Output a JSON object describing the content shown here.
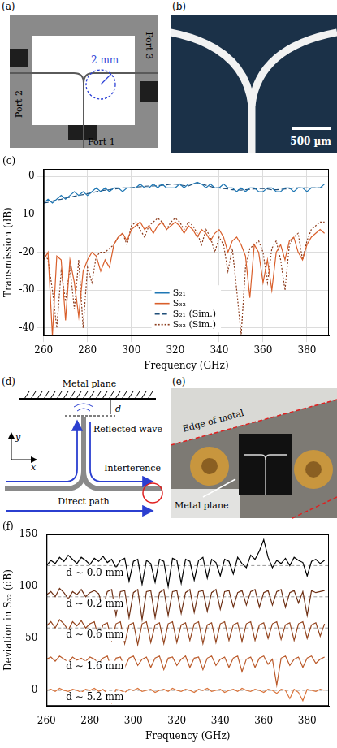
{
  "panels": {
    "a": {
      "letter": "(a)",
      "scale": "2 mm",
      "ports": [
        "Port 1",
        "Port 2",
        "Port 3"
      ]
    },
    "b": {
      "letter": "(b)",
      "scale_bar": "500 µm"
    },
    "d": {
      "letter": "(d)",
      "labels": {
        "plane": "Metal plane",
        "gap": "d",
        "reflected": "Reflected wave",
        "interference": "Interference",
        "direct": "Direct path",
        "y_axis": "y",
        "x_axis": "x"
      }
    },
    "e": {
      "letter": "(e)",
      "labels": {
        "edge": "Edge of metal",
        "plane": "Metal plane"
      }
    }
  },
  "chart_data": [
    {
      "type": "line",
      "title": "(c)",
      "x_label": "Frequency (GHz)",
      "y_label": "Transmission (dB)",
      "x": [
        260,
        262,
        264,
        266,
        268,
        270,
        272,
        274,
        276,
        278,
        280,
        282,
        284,
        286,
        288,
        290,
        292,
        294,
        296,
        298,
        300,
        302,
        304,
        306,
        308,
        310,
        312,
        314,
        316,
        318,
        320,
        322,
        324,
        326,
        328,
        330,
        332,
        334,
        336,
        338,
        340,
        342,
        344,
        346,
        348,
        350,
        352,
        354,
        356,
        358,
        360,
        362,
        364,
        366,
        368,
        370,
        372,
        374,
        376,
        378,
        380,
        382,
        384,
        386,
        388
      ],
      "xlim": [
        260,
        390
      ],
      "xticks": [
        260,
        280,
        300,
        320,
        340,
        360,
        380
      ],
      "ylim": [
        -42,
        2
      ],
      "yticks": [
        -40,
        -30,
        -20,
        -10,
        0
      ],
      "grid": true,
      "legend": "lower center",
      "series": [
        {
          "name": "S₂₁",
          "color": "#1f77b4",
          "line_style": "solid",
          "values": [
            -7,
            -6,
            -7,
            -6,
            -5,
            -6,
            -5,
            -4,
            -5,
            -4,
            -5,
            -4,
            -3,
            -4,
            -3,
            -4,
            -3,
            -3,
            -4,
            -3,
            -3,
            -3,
            -2,
            -3,
            -3,
            -2,
            -3,
            -2,
            -3,
            -3,
            -3,
            -2,
            -3,
            -2,
            -2,
            -1.5,
            -2,
            -3,
            -2,
            -3,
            -3,
            -2,
            -3,
            -3,
            -4,
            -3,
            -4,
            -3,
            -3,
            -4,
            -4,
            -3,
            -3,
            -4,
            -4,
            -3,
            -3,
            -4,
            -3,
            -3,
            -4,
            -3,
            -3,
            -3,
            -2
          ]
        },
        {
          "name": "S₃₂",
          "color": "#d95f2b",
          "line_style": "solid",
          "values": [
            -22,
            -20,
            -42,
            -21,
            -22,
            -38,
            -22,
            -28,
            -37,
            -25,
            -22,
            -20,
            -21,
            -25,
            -22,
            -24,
            -18,
            -16,
            -15,
            -17,
            -14,
            -13,
            -12,
            -14,
            -13,
            -15,
            -13,
            -12,
            -14,
            -13,
            -12,
            -13,
            -15,
            -13,
            -14,
            -16,
            -14,
            -15,
            -17,
            -15,
            -14,
            -16,
            -20,
            -17,
            -16,
            -18,
            -21,
            -32,
            -18,
            -20,
            -28,
            -22,
            -30,
            -20,
            -18,
            -22,
            -17,
            -16,
            -20,
            -22,
            -18,
            -16,
            -15,
            -14,
            -15
          ]
        },
        {
          "name": "S₂₁ (Sim.)",
          "color": "#1f4e79",
          "line_style": "dashed",
          "values": [
            -7,
            -6.8,
            -6.5,
            -6.2,
            -6,
            -5.7,
            -5.5,
            -5.2,
            -5,
            -4.8,
            -4.5,
            -4.3,
            -4,
            -3.8,
            -3.6,
            -3.5,
            -3.3,
            -3.2,
            -3,
            -3,
            -3,
            -2.8,
            -2.7,
            -2.6,
            -2.5,
            -2.5,
            -2.4,
            -2.3,
            -2.2,
            -2,
            -2,
            -2.2,
            -2.4,
            -2.5,
            -2,
            -1.8,
            -2,
            -2.3,
            -2.6,
            -3,
            -3,
            -3.2,
            -3.3,
            -3.5,
            -3.5,
            -3.6,
            -3.5,
            -3.4,
            -3.3,
            -3.2,
            -3.2,
            -3.3,
            -3.5,
            -3.5,
            -3.4,
            -3.3,
            -3.2,
            -3,
            -3,
            -3,
            -3,
            -3,
            -3,
            -3,
            -3
          ]
        },
        {
          "name": "S₃₂ (Sim.)",
          "color": "#8b3a1a",
          "line_style": "dotted",
          "values": [
            -20,
            -22,
            -30,
            -40,
            -25,
            -33,
            -24,
            -35,
            -22,
            -40,
            -24,
            -28,
            -21,
            -20,
            -20,
            -19,
            -18,
            -16,
            -15,
            -18,
            -13,
            -12,
            -14,
            -16,
            -13,
            -12,
            -11,
            -12,
            -14,
            -12,
            -11,
            -12,
            -14,
            -12,
            -13,
            -15,
            -18,
            -14,
            -16,
            -20,
            -16,
            -18,
            -25,
            -19,
            -30,
            -42,
            -24,
            -19,
            -18,
            -17,
            -20,
            -28,
            -19,
            -17,
            -22,
            -30,
            -18,
            -16,
            -15,
            -22,
            -17,
            -14,
            -13,
            -12,
            -12
          ]
        }
      ]
    },
    {
      "type": "line",
      "title": "(f)",
      "x_label": "Frequency (GHz)",
      "y_label": "Deviation in S₃₂ (dB)",
      "x": [
        260,
        262,
        264,
        266,
        268,
        270,
        272,
        274,
        276,
        278,
        280,
        282,
        284,
        286,
        288,
        290,
        292,
        294,
        296,
        298,
        300,
        302,
        304,
        306,
        308,
        310,
        312,
        314,
        316,
        318,
        320,
        322,
        324,
        326,
        328,
        330,
        332,
        334,
        336,
        338,
        340,
        342,
        344,
        346,
        348,
        350,
        352,
        354,
        356,
        358,
        360,
        362,
        364,
        366,
        368,
        370,
        372,
        374,
        376,
        378,
        380,
        382,
        384,
        386,
        388
      ],
      "xlim": [
        260,
        390
      ],
      "xticks": [
        260,
        280,
        300,
        320,
        340,
        360,
        380
      ],
      "ylim": [
        -15,
        150
      ],
      "yticks": [
        0,
        50,
        100,
        150
      ],
      "grid": false,
      "series": [
        {
          "name": "d ∼ 0.0 mm",
          "color": "#000000",
          "line_style": "solid",
          "baseline": 120,
          "values": [
            120,
            125,
            122,
            128,
            124,
            130,
            126,
            122,
            128,
            125,
            121,
            127,
            124,
            129,
            123,
            126,
            118,
            125,
            127,
            105,
            124,
            126,
            102,
            125,
            122,
            104,
            126,
            124,
            100,
            127,
            125,
            103,
            126,
            124,
            106,
            125,
            128,
            108,
            126,
            123,
            110,
            126,
            124,
            112,
            128,
            122,
            118,
            130,
            126,
            134,
            145,
            128,
            118,
            125,
            122,
            127,
            120,
            128,
            125,
            123,
            110,
            124,
            126,
            122,
            125
          ]
        },
        {
          "name": "d ∼ 0.2 mm",
          "color": "#6e3015",
          "line_style": "solid",
          "baseline": 90,
          "values": [
            92,
            95,
            90,
            98,
            94,
            88,
            95,
            92,
            97,
            90,
            94,
            96,
            93,
            80,
            95,
            97,
            72,
            95,
            96,
            70,
            94,
            97,
            68,
            95,
            96,
            70,
            94,
            97,
            72,
            95,
            96,
            74,
            94,
            97,
            75,
            95,
            96,
            76,
            94,
            97,
            78,
            95,
            96,
            80,
            94,
            96,
            82,
            95,
            97,
            80,
            94,
            96,
            82,
            95,
            97,
            80,
            94,
            96,
            84,
            95,
            72,
            96,
            94,
            95,
            96
          ]
        },
        {
          "name": "d ∼ 0.6 mm",
          "color": "#94451f",
          "line_style": "solid",
          "baseline": 60,
          "values": [
            62,
            66,
            60,
            68,
            64,
            58,
            66,
            62,
            67,
            60,
            64,
            66,
            50,
            63,
            65,
            48,
            64,
            66,
            45,
            63,
            65,
            44,
            64,
            66,
            46,
            63,
            65,
            45,
            64,
            66,
            46,
            63,
            65,
            48,
            64,
            66,
            45,
            63,
            65,
            46,
            64,
            66,
            48,
            63,
            65,
            47,
            64,
            66,
            48,
            63,
            65,
            50,
            64,
            66,
            49,
            63,
            65,
            48,
            64,
            66,
            50,
            63,
            65,
            52,
            64
          ]
        },
        {
          "name": "d ∼ 1.6 mm",
          "color": "#bb5a2a",
          "line_style": "solid",
          "baseline": 30,
          "values": [
            30,
            32,
            28,
            33,
            30,
            27,
            32,
            29,
            31,
            28,
            32,
            30,
            26,
            31,
            33,
            20,
            31,
            32,
            22,
            31,
            33,
            24,
            30,
            32,
            22,
            31,
            33,
            20,
            31,
            32,
            24,
            30,
            33,
            22,
            31,
            32,
            20,
            31,
            33,
            24,
            30,
            32,
            22,
            31,
            33,
            18,
            30,
            32,
            22,
            31,
            33,
            25,
            30,
            5,
            31,
            33,
            24,
            30,
            32,
            22,
            31,
            33,
            26,
            30,
            32
          ]
        },
        {
          "name": "d ∼ 5.2 mm",
          "color": "#d9733a",
          "line_style": "solid",
          "baseline": 0,
          "values": [
            0,
            1,
            -1,
            2,
            0,
            -1,
            1,
            0,
            -2,
            1,
            0,
            2,
            -1,
            1,
            -3,
            -12,
            1,
            0,
            -2,
            1,
            0,
            2,
            -1,
            0,
            1,
            -2,
            0,
            1,
            -1,
            2,
            0,
            -1,
            1,
            0,
            -2,
            1,
            0,
            2,
            -1,
            0,
            1,
            -2,
            0,
            1,
            -1,
            2,
            0,
            -1,
            1,
            0,
            -2,
            1,
            0,
            -3,
            1,
            0,
            -8,
            1,
            -2,
            -10,
            1,
            0,
            -1,
            1,
            0
          ]
        }
      ]
    }
  ]
}
